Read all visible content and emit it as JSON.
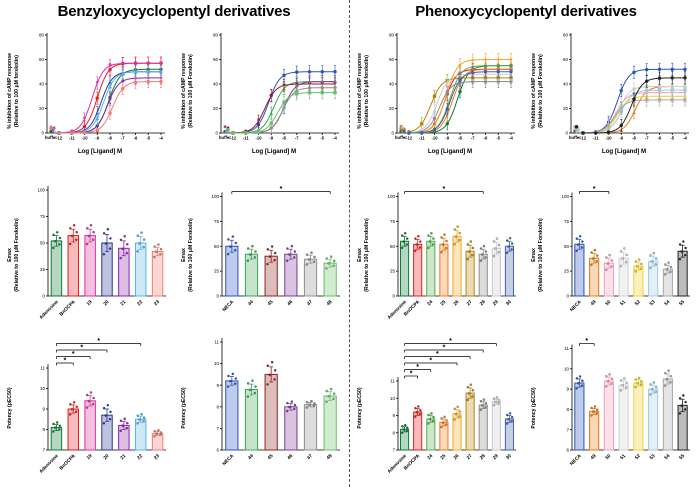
{
  "titles": {
    "left": "Benzyloxycyclopentyl derivatives",
    "right": "Phenoxycyclopentyl derivatives"
  },
  "chart_data": [
    {
      "id": "dose-response-benzyloxy-vs-adenosine",
      "type": "line",
      "ylabel": "% inhibition of cAMP response\n(Relative to 100 μM forskolin)",
      "xlabel": "Log [Ligand] M",
      "ylim": [
        0,
        80
      ],
      "yticks": [
        0,
        20,
        40,
        60,
        80
      ],
      "xticklabels": [
        "buffer",
        "-12",
        "-11",
        "-10",
        "-9",
        "-8",
        "-7",
        "-6",
        "-5",
        "-4"
      ],
      "point_error": 5,
      "series": [
        {
          "name": "Adenosine",
          "color": "#0b7a34",
          "marker": "circle",
          "emax": 52,
          "pec50": 8.1
        },
        {
          "name": "BnOCPA",
          "color": "#e41a1c",
          "marker": "circle",
          "emax": 57,
          "pec50": 9.0
        },
        {
          "name": "19",
          "color": "#db2f9d",
          "marker": "invtriangle",
          "emax": 57,
          "pec50": 9.4
        },
        {
          "name": "20",
          "color": "#283593",
          "marker": "triangle",
          "emax": 50,
          "pec50": 8.7
        },
        {
          "name": "21",
          "color": "#8e24aa",
          "marker": "diamond",
          "emax": 45,
          "pec50": 8.2
        },
        {
          "name": "22",
          "color": "#5ab4e5",
          "marker": "x",
          "emax": 50,
          "pec50": 8.5
        },
        {
          "name": "23",
          "color": "#f07b6f",
          "marker": "circle",
          "emax": 42,
          "pec50": 7.8
        }
      ]
    },
    {
      "id": "dose-response-benzyloxy-vs-neca",
      "type": "line",
      "ylabel": "% inhibition of cAMP response\n(Relative to 100 μM Forskolin)",
      "xlabel": "Log [Ligand] M",
      "ylim": [
        0,
        80
      ],
      "yticks": [
        0,
        20,
        40,
        60,
        80
      ],
      "xticklabels": [
        "buffer",
        "-12",
        "-11",
        "-10",
        "-9",
        "-8",
        "-7",
        "-6",
        "-5",
        "-4"
      ],
      "point_error": 5,
      "series": [
        {
          "name": "NECA",
          "color": "#2a52be",
          "marker": "circle",
          "emax": 50,
          "pec50": 9.2
        },
        {
          "name": "44",
          "color": "#3aa655",
          "marker": "triangle",
          "emax": 42,
          "pec50": 8.8
        },
        {
          "name": "45",
          "color": "#8e2020",
          "marker": "invtriangle",
          "emax": 40,
          "pec50": 9.5
        },
        {
          "name": "46",
          "color": "#7d3c98",
          "marker": "diamond",
          "emax": 42,
          "pec50": 8.0
        },
        {
          "name": "47",
          "color": "#8f8f8f",
          "marker": "circle",
          "emax": 37,
          "pec50": 8.1
        },
        {
          "name": "48",
          "color": "#6abf69",
          "marker": "square",
          "emax": 33,
          "pec50": 8.5
        }
      ]
    },
    {
      "id": "dose-response-phenoxy-vs-adenosine",
      "type": "line",
      "ylabel": "% inhibition of cAMP response\n(Relative to 100 μM forskolin)",
      "xlabel": "Log [Ligand] M",
      "ylim": [
        0,
        80
      ],
      "yticks": [
        0,
        20,
        40,
        60,
        80
      ],
      "xticklabels": [
        "buffer",
        "-12",
        "-11",
        "-10",
        "-9",
        "-8",
        "-7",
        "-6",
        "-5",
        "-4"
      ],
      "point_error": 5,
      "series": [
        {
          "name": "Adenosine",
          "color": "#0b7a34",
          "marker": "circle",
          "emax": 55,
          "pec50": 8.2
        },
        {
          "name": "BnOCPA",
          "color": "#e41a1c",
          "marker": "circle",
          "emax": 52,
          "pec50": 9.2
        },
        {
          "name": "24",
          "color": "#56b04c",
          "marker": "triangle",
          "emax": 55,
          "pec50": 8.8
        },
        {
          "name": "25",
          "color": "#ef7d1a",
          "marker": "invtriangle",
          "emax": 52,
          "pec50": 8.6
        },
        {
          "name": "26",
          "color": "#f5a623",
          "marker": "diamond",
          "emax": 60,
          "pec50": 9.1
        },
        {
          "name": "27",
          "color": "#b8860b",
          "marker": "square",
          "emax": 45,
          "pec50": 10.3
        },
        {
          "name": "28",
          "color": "#8c8c8c",
          "marker": "circle",
          "emax": 42,
          "pec50": 9.6
        },
        {
          "name": "29",
          "color": "#c9c9c9",
          "marker": "triangle",
          "emax": 48,
          "pec50": 9.8
        },
        {
          "name": "30",
          "color": "#3f62ad",
          "marker": "circle",
          "emax": 50,
          "pec50": 8.8
        }
      ]
    },
    {
      "id": "dose-response-phenoxy-vs-neca",
      "type": "line",
      "ylabel": "% inhibition of cAMP response\n(Relative to 100 μM Forskolin)",
      "xlabel": "Log [Ligand] M",
      "ylim": [
        0,
        80
      ],
      "yticks": [
        0,
        20,
        40,
        60,
        80
      ],
      "xticklabels": [
        "buffer",
        "-12",
        "-11",
        "-10",
        "-9",
        "-8",
        "-7",
        "-6",
        "-5",
        "-4"
      ],
      "point_error": 5,
      "series": [
        {
          "name": "NECA",
          "color": "#2a52be",
          "marker": "circle",
          "emax": 52,
          "pec50": 9.3
        },
        {
          "name": "49",
          "color": "#e87a10",
          "marker": "triangle",
          "emax": 38,
          "pec50": 7.9
        },
        {
          "name": "50",
          "color": "#f49ac1",
          "marker": "invtriangle",
          "emax": 33,
          "pec50": 9.4
        },
        {
          "name": "51",
          "color": "#cfcfcf",
          "marker": "circle",
          "emax": 38,
          "pec50": 9.2
        },
        {
          "name": "52",
          "color": "#f2d024",
          "marker": "diamond",
          "emax": 30,
          "pec50": 9.3
        },
        {
          "name": "53",
          "color": "#9ecae1",
          "marker": "square",
          "emax": 35,
          "pec50": 9.0
        },
        {
          "name": "54",
          "color": "#a6a6a6",
          "marker": "x",
          "emax": 27,
          "pec50": 9.5
        },
        {
          "name": "55",
          "color": "#222222",
          "marker": "circle",
          "emax": 45,
          "pec50": 8.2
        }
      ]
    },
    {
      "id": "emax-benzyloxy-vs-adenosine",
      "type": "bar",
      "ylabel": "Emax\n(Relative to 100 μM Forskolin)",
      "ylim": [
        0,
        100
      ],
      "yticks": [
        0,
        25,
        50,
        75,
        100
      ],
      "categories": [
        "Adenosine",
        "BnOCPA",
        "19",
        "20",
        "21",
        "22",
        "23"
      ],
      "values": [
        52,
        57,
        57,
        50,
        45,
        50,
        42
      ],
      "errors": [
        5,
        6,
        6,
        8,
        7,
        6,
        4
      ],
      "colors": [
        "#0b7a34",
        "#e41a1c",
        "#db2f9d",
        "#283593",
        "#8e24aa",
        "#5ab4e5",
        "#f07b6f"
      ],
      "sig": []
    },
    {
      "id": "emax-benzyloxy-vs-neca",
      "type": "bar",
      "ylabel": "Emax\n(Relative to 100 μM Forskolin)",
      "ylim": [
        0,
        100
      ],
      "yticks": [
        0,
        25,
        50,
        75,
        100
      ],
      "categories": [
        "NECA",
        "44",
        "45",
        "46",
        "47",
        "48"
      ],
      "values": [
        50,
        42,
        40,
        42,
        37,
        33
      ],
      "errors": [
        6,
        5,
        6,
        5,
        4,
        4
      ],
      "colors": [
        "#2a52be",
        "#3aa655",
        "#8e2020",
        "#7d3c98",
        "#8f8f8f",
        "#6abf69"
      ],
      "sig": [
        {
          "from": 0,
          "to": 5,
          "label": "*"
        }
      ]
    },
    {
      "id": "emax-phenoxy-vs-adenosine",
      "type": "bar",
      "ylabel": "Emax\n(Relative to 100 μM Forskolin)",
      "ylim": [
        0,
        100
      ],
      "yticks": [
        0,
        25,
        50,
        75,
        100
      ],
      "categories": [
        "Adenosine",
        "BnOCPA",
        "24",
        "25",
        "26",
        "27",
        "28",
        "29",
        "30"
      ],
      "values": [
        55,
        52,
        55,
        52,
        60,
        45,
        42,
        48,
        50
      ],
      "errors": [
        5,
        5,
        5,
        6,
        6,
        6,
        5,
        6,
        5
      ],
      "colors": [
        "#0b7a34",
        "#e41a1c",
        "#56b04c",
        "#ef7d1a",
        "#f5a623",
        "#b8860b",
        "#8c8c8c",
        "#c9c9c9",
        "#3f62ad"
      ],
      "sig": [
        {
          "from": 0,
          "to": 6,
          "label": "*"
        }
      ]
    },
    {
      "id": "emax-phenoxy-vs-neca",
      "type": "bar",
      "ylabel": "Emax\n(Relative to 100 μM Forskolin)",
      "ylim": [
        0,
        100
      ],
      "yticks": [
        0,
        25,
        50,
        75,
        100
      ],
      "categories": [
        "NECA",
        "49",
        "50",
        "51",
        "52",
        "53",
        "54",
        "55"
      ],
      "values": [
        52,
        38,
        33,
        38,
        30,
        35,
        27,
        45
      ],
      "errors": [
        5,
        5,
        5,
        6,
        4,
        5,
        4,
        6
      ],
      "colors": [
        "#2a52be",
        "#e87a10",
        "#f49ac1",
        "#cfcfcf",
        "#f2d024",
        "#9ecae1",
        "#a6a6a6",
        "#222222"
      ],
      "sig": [
        {
          "from": 0,
          "to": 2,
          "label": "*"
        }
      ]
    },
    {
      "id": "potency-benzyloxy-vs-adenosine",
      "type": "bar",
      "ylabel": "Potency (pEC50)",
      "ylim": [
        7,
        11
      ],
      "yticks": [
        7,
        8,
        9,
        10,
        11
      ],
      "categories": [
        "Adenosine",
        "BnOCPA",
        "19",
        "20",
        "21",
        "22",
        "23"
      ],
      "values": [
        8.1,
        9.0,
        9.4,
        8.7,
        8.2,
        8.5,
        7.8
      ],
      "errors": [
        0.15,
        0.2,
        0.25,
        0.3,
        0.2,
        0.15,
        0.1
      ],
      "colors": [
        "#0b7a34",
        "#e41a1c",
        "#db2f9d",
        "#283593",
        "#8e24aa",
        "#5ab4e5",
        "#f07b6f"
      ],
      "sig": [
        {
          "from": 0,
          "to": 1,
          "label": "*"
        },
        {
          "from": 0,
          "to": 2,
          "label": "*"
        },
        {
          "from": 0,
          "to": 3,
          "label": "*"
        },
        {
          "from": 0,
          "to": 5,
          "label": "*"
        }
      ]
    },
    {
      "id": "potency-benzyloxy-vs-neca",
      "type": "bar",
      "ylabel": "Potency (pEC50)",
      "ylim": [
        6,
        11
      ],
      "yticks": [
        6,
        7,
        8,
        9,
        10,
        11
      ],
      "categories": [
        "NECA",
        "44",
        "45",
        "46",
        "47",
        "48"
      ],
      "values": [
        9.2,
        8.8,
        9.5,
        8.0,
        8.1,
        8.5
      ],
      "errors": [
        0.2,
        0.25,
        0.35,
        0.15,
        0.1,
        0.2
      ],
      "colors": [
        "#2a52be",
        "#3aa655",
        "#8e2020",
        "#7d3c98",
        "#8f8f8f",
        "#6abf69"
      ],
      "sig": []
    },
    {
      "id": "potency-phenoxy-vs-adenosine",
      "type": "bar",
      "ylabel": "Potency (pEC50)",
      "ylim": [
        7,
        11
      ],
      "yticks": [
        7,
        8,
        9,
        10,
        11
      ],
      "categories": [
        "Adenosine",
        "BnOCPA",
        "24",
        "25",
        "26",
        "27",
        "28",
        "29",
        "30"
      ],
      "values": [
        8.2,
        9.2,
        8.8,
        8.6,
        9.1,
        10.3,
        9.6,
        9.8,
        8.8
      ],
      "errors": [
        0.15,
        0.2,
        0.2,
        0.2,
        0.25,
        0.3,
        0.2,
        0.15,
        0.2
      ],
      "colors": [
        "#0b7a34",
        "#e41a1c",
        "#56b04c",
        "#ef7d1a",
        "#f5a623",
        "#b8860b",
        "#8c8c8c",
        "#c9c9c9",
        "#3f62ad"
      ],
      "sig": [
        {
          "from": 0,
          "to": 1,
          "label": "*"
        },
        {
          "from": 0,
          "to": 2,
          "label": "*"
        },
        {
          "from": 0,
          "to": 4,
          "label": "*"
        },
        {
          "from": 0,
          "to": 5,
          "label": "*"
        },
        {
          "from": 0,
          "to": 6,
          "label": "*"
        },
        {
          "from": 0,
          "to": 7,
          "label": "*"
        }
      ]
    },
    {
      "id": "potency-phenoxy-vs-neca",
      "type": "bar",
      "ylabel": "Potency (pEC50)",
      "ylim": [
        6,
        11
      ],
      "yticks": [
        6,
        7,
        8,
        9,
        10,
        11
      ],
      "categories": [
        "NECA",
        "49",
        "50",
        "51",
        "52",
        "53",
        "54",
        "55"
      ],
      "values": [
        9.3,
        7.9,
        9.4,
        9.2,
        9.3,
        9.0,
        9.5,
        8.2
      ],
      "errors": [
        0.2,
        0.15,
        0.2,
        0.2,
        0.15,
        0.2,
        0.25,
        0.3
      ],
      "colors": [
        "#2a52be",
        "#e87a10",
        "#f49ac1",
        "#cfcfcf",
        "#f2d024",
        "#9ecae1",
        "#a6a6a6",
        "#222222"
      ],
      "sig": [
        {
          "from": 0,
          "to": 1,
          "label": "*"
        }
      ]
    }
  ]
}
